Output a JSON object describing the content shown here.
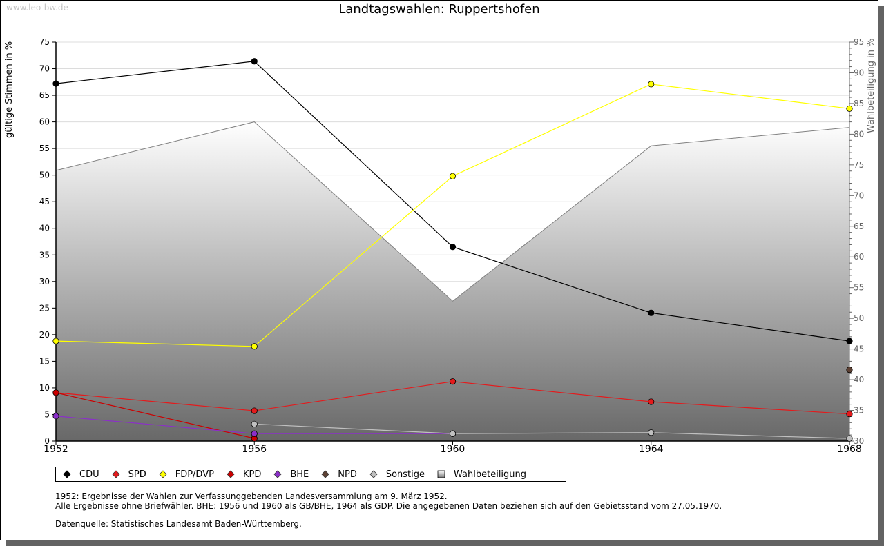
{
  "watermark": "www.leo-bw.de",
  "chart_data": {
    "type": "line",
    "title": "Landtagswahlen: Ruppertshofen",
    "ylabel": "gültige Stimmen in %",
    "y2label": "Wahlbeteiligung in %",
    "x": [
      1952,
      1956,
      1960,
      1964,
      1968
    ],
    "xticks": [
      "1952",
      "1956",
      "1960",
      "1964",
      "1968"
    ],
    "ylim": [
      0,
      75
    ],
    "yticks": [
      "0",
      "5",
      "10",
      "15",
      "20",
      "25",
      "30",
      "35",
      "40",
      "45",
      "50",
      "55",
      "60",
      "65",
      "70",
      "75"
    ],
    "y2lim": [
      30,
      95
    ],
    "y2ticks": [
      "30",
      "35",
      "40",
      "45",
      "50",
      "55",
      "60",
      "65",
      "70",
      "75",
      "80",
      "85",
      "90",
      "95"
    ],
    "grid": true,
    "legend_placement": "bottom",
    "series": [
      {
        "name": "CDU",
        "color": "#000000",
        "values": [
          67.2,
          71.4,
          36.5,
          24.1,
          18.8
        ]
      },
      {
        "name": "SPD",
        "color": "#e41a1c",
        "values": [
          9.1,
          5.7,
          11.2,
          7.4,
          5.1
        ]
      },
      {
        "name": "FDP/DVP",
        "color": "#ffff00",
        "values": [
          18.8,
          17.8,
          49.8,
          67.1,
          62.5
        ]
      },
      {
        "name": "KPD",
        "color": "#cc0000",
        "values": [
          9.1,
          0.5,
          null,
          null,
          null
        ]
      },
      {
        "name": "BHE",
        "color": "#8b2fc9",
        "values": [
          4.7,
          1.4,
          1.4,
          null,
          null
        ]
      },
      {
        "name": "NPD",
        "color": "#5c4033",
        "values": [
          null,
          null,
          null,
          null,
          13.4
        ]
      },
      {
        "name": "Sonstige",
        "color": "#c0c0c0",
        "values": [
          null,
          3.2,
          1.4,
          1.6,
          0.5
        ]
      }
    ],
    "turnout": {
      "name": "Wahlbeteiligung",
      "axis": "right",
      "values": [
        74.1,
        82.0,
        52.8,
        78.1,
        81.1
      ]
    }
  },
  "notes": {
    "line1": "1952: Ergebnisse der Wahlen zur Verfassunggebenden Landesversammlung am 9. März 1952.",
    "line2": "Alle Ergebnisse ohne Briefwähler. BHE: 1956 und 1960 als GB/BHE, 1964 als GDP. Die angegebenen Daten beziehen sich auf den Gebietsstand vom 27.05.1970.",
    "source": "Datenquelle: Statistisches Landesamt Baden-Württemberg."
  }
}
